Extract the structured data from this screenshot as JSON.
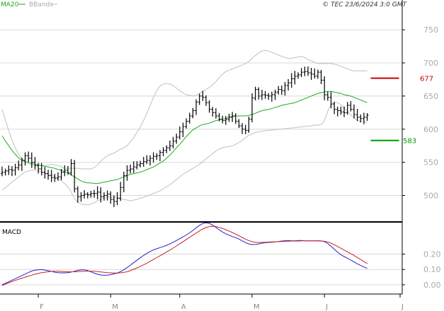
{
  "header": {
    "ma_legend": "MA20",
    "bb_legend": "BBands",
    "source": "© TEC 23/6/2024 3:0 GMT"
  },
  "macd_label": "MACD",
  "colors": {
    "price": "#000000",
    "ma": "#22aa22",
    "bbands": "#c0c0c0",
    "macd": "#2222cc",
    "signal": "#cc2222",
    "resistance": "#cc0000",
    "support": "#009900",
    "grid": "#d8d8d8"
  },
  "chart_data": [
    {
      "type": "ohlc",
      "title": "",
      "ylim": [
        460,
        780
      ],
      "y_ticks": [
        500,
        550,
        600,
        650,
        700,
        750
      ],
      "y_tick_labels": [
        "500",
        "550",
        "600",
        "650",
        "700",
        "750"
      ],
      "x_labels": [
        "F",
        "M",
        "A",
        "M",
        "J",
        "J"
      ],
      "x_label_indices": [
        11,
        33,
        54,
        76,
        98,
        121
      ],
      "n_periods": 122,
      "last_index": 111,
      "closes": [
        535,
        537,
        539,
        538,
        542,
        546,
        553,
        560,
        556,
        550,
        545,
        540,
        535,
        533,
        530,
        527,
        526,
        528,
        535,
        538,
        534,
        548,
        510,
        498,
        500,
        502,
        501,
        503,
        503,
        505,
        498,
        500,
        502,
        494,
        491,
        496,
        512,
        530,
        538,
        540,
        543,
        546,
        548,
        551,
        553,
        556,
        559,
        560,
        565,
        568,
        572,
        575,
        582,
        588,
        596,
        604,
        612,
        620,
        628,
        641,
        650,
        648,
        640,
        630,
        625,
        620,
        615,
        613,
        615,
        618,
        620,
        612,
        605,
        600,
        598,
        615,
        647,
        660,
        650,
        652,
        651,
        650,
        652,
        656,
        660,
        658,
        666,
        670,
        676,
        680,
        682,
        686,
        687,
        685,
        683,
        680,
        686,
        674,
        652,
        648,
        638,
        630,
        628,
        626,
        625,
        636,
        630,
        622,
        618,
        616,
        618,
        621
      ],
      "ma20": [
        590,
        582,
        575,
        568,
        562,
        557,
        553,
        551,
        550,
        548,
        547,
        546,
        545,
        544,
        543,
        542,
        541,
        539,
        538,
        536,
        534,
        531,
        528,
        525,
        522,
        520,
        519,
        519,
        518,
        518,
        519,
        520,
        521,
        522,
        523,
        524,
        526,
        528,
        530,
        532,
        533,
        534,
        535,
        537,
        539,
        541,
        543,
        546,
        549,
        552,
        556,
        561,
        566,
        572,
        577,
        583,
        589,
        594,
        599,
        602,
        605,
        607,
        608,
        609,
        611,
        613,
        614,
        615,
        616,
        618,
        619,
        620,
        620,
        620,
        620,
        621,
        622,
        624,
        626,
        628,
        629,
        630,
        631,
        633,
        634,
        636,
        637,
        638,
        639,
        640,
        642,
        644,
        646,
        648,
        650,
        652,
        654,
        655,
        656,
        657,
        657,
        656,
        655,
        654,
        652,
        651,
        650,
        648,
        646,
        644,
        642,
        640
      ],
      "bb_upper": [
        630,
        614,
        598,
        584,
        572,
        562,
        556,
        551,
        548,
        546,
        545,
        545,
        545,
        545,
        546,
        547,
        546,
        545,
        543,
        541,
        541,
        541,
        541,
        541,
        540,
        540,
        540,
        540,
        542,
        546,
        552,
        556,
        560,
        562,
        564,
        567,
        570,
        572,
        575,
        581,
        587,
        595,
        603,
        613,
        624,
        636,
        648,
        658,
        665,
        668,
        669,
        668,
        666,
        662,
        658,
        655,
        652,
        651,
        650,
        651,
        654,
        657,
        660,
        663,
        667,
        672,
        678,
        683,
        687,
        689,
        691,
        693,
        695,
        697,
        699,
        702,
        707,
        711,
        715,
        718,
        719,
        718,
        716,
        714,
        712,
        710,
        708,
        707,
        707,
        708,
        709,
        710,
        708,
        705,
        703,
        701,
        699,
        699,
        699,
        699,
        699,
        698,
        697,
        695,
        693,
        691,
        689,
        688,
        688,
        688,
        688,
        688
      ],
      "bb_lower": [
        508,
        512,
        516,
        520,
        524,
        528,
        532,
        535,
        537,
        538,
        538,
        537,
        535,
        533,
        532,
        531,
        529,
        526,
        522,
        518,
        513,
        505,
        495,
        490,
        487,
        486,
        486,
        487,
        489,
        492,
        494,
        496,
        498,
        497,
        497,
        496,
        495,
        494,
        493,
        492,
        493,
        494,
        496,
        497,
        499,
        501,
        503,
        505,
        507,
        510,
        513,
        516,
        520,
        524,
        528,
        532,
        535,
        538,
        541,
        544,
        547,
        551,
        555,
        559,
        563,
        567,
        570,
        572,
        573,
        574,
        575,
        577,
        580,
        583,
        587,
        591,
        593,
        595,
        596,
        597,
        598,
        598,
        599,
        599,
        600,
        600,
        601,
        601,
        602,
        602,
        603,
        603,
        604,
        605,
        605,
        606,
        606,
        607,
        613,
        627,
        637,
        640,
        640,
        637,
        632,
        627,
        622,
        617,
        613,
        612,
        611,
        610
      ],
      "resistance": {
        "value": 677,
        "label": "677"
      },
      "support": {
        "value": 583,
        "label": "583"
      }
    },
    {
      "type": "line",
      "title": "MACD",
      "ylim": [
        -6,
        40
      ],
      "y_ticks": [
        0,
        10,
        20
      ],
      "y_tick_labels": [
        "0.00",
        "0.10",
        "0.20"
      ],
      "series": [
        {
          "name": "",
          "values": [
            0,
            1,
            2,
            3,
            4,
            5,
            6,
            7,
            8,
            9,
            9.5,
            9.8,
            9.9,
            9.6,
            9.2,
            8.7,
            8.2,
            7.9,
            7.8,
            7.8,
            7.9,
            8.3,
            8.8,
            9.4,
            9.8,
            9.8,
            9.3,
            8.5,
            7.6,
            6.9,
            6.4,
            6.2,
            6.3,
            6.6,
            7.1,
            7.7,
            8.6,
            9.8,
            11.2,
            12.8,
            14.4,
            16.0,
            17.6,
            19.1,
            20.5,
            21.7,
            22.7,
            23.5,
            24.2,
            24.9,
            25.7,
            26.6,
            27.7,
            28.8,
            30.0,
            31.2,
            32.4,
            33.8,
            35.4,
            37.1,
            38.7,
            39.9,
            40.4,
            40.0,
            38.9,
            37.4,
            35.8,
            34.4,
            33.2,
            32.3,
            31.4,
            30.7,
            29.8,
            28.6,
            27.5,
            26.6,
            26.2,
            26.3,
            26.6,
            27.1,
            27.4,
            27.6,
            27.7,
            27.9,
            28.2,
            28.5,
            28.7,
            28.8,
            28.7,
            28.7,
            28.8,
            28.8,
            28.7,
            28.6,
            28.6,
            28.6,
            28.7,
            28.6,
            28.1,
            26.9,
            25.1,
            23.1,
            21.2,
            19.6,
            18.4,
            17.3,
            16.1,
            14.9,
            13.7,
            12.6,
            11.6,
            10.7
          ]
        },
        {
          "name": "",
          "values": [
            -0.5,
            0.5,
            1.3,
            2.1,
            2.9,
            3.6,
            4.3,
            5.0,
            5.7,
            6.3,
            6.9,
            7.4,
            7.9,
            8.2,
            8.5,
            8.7,
            8.8,
            8.8,
            8.7,
            8.6,
            8.5,
            8.5,
            8.5,
            8.6,
            8.7,
            8.8,
            8.9,
            8.9,
            8.8,
            8.6,
            8.4,
            8.1,
            7.9,
            7.8,
            7.7,
            7.7,
            7.8,
            8.1,
            8.5,
            9.2,
            10.1,
            11.0,
            12.0,
            13.0,
            14.1,
            15.3,
            16.5,
            17.7,
            18.9,
            20.1,
            21.4,
            22.6,
            23.9,
            25.3,
            26.7,
            28.1,
            29.5,
            30.9,
            32.3,
            33.7,
            35.1,
            36.3,
            37.3,
            37.9,
            38.1,
            37.9,
            37.4,
            36.7,
            35.9,
            35.0,
            34.0,
            33.0,
            31.9,
            30.8,
            29.7,
            28.8,
            28.1,
            27.7,
            27.6,
            27.6,
            27.7,
            27.8,
            27.9,
            28.0,
            28.1,
            28.2,
            28.3,
            28.4,
            28.5,
            28.5,
            28.5,
            28.6,
            28.6,
            28.6,
            28.6,
            28.6,
            28.6,
            28.5,
            28.3,
            27.9,
            27.1,
            26.1,
            24.9,
            23.8,
            22.6,
            21.4,
            20.3,
            19.1,
            17.8,
            16.4,
            15.1,
            13.8
          ]
        }
      ]
    }
  ]
}
